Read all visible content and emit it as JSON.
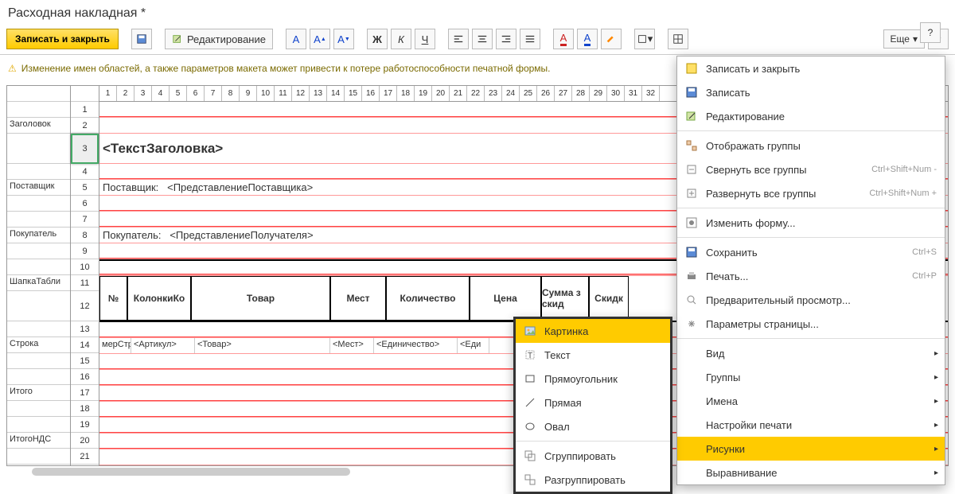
{
  "title": "Расходная накладная *",
  "toolbar": {
    "save_close": "Записать и закрыть",
    "edit": "Редактирование",
    "more": "Еще"
  },
  "warning": "Изменение имен областей, а также параметров макета может привести к потере работоспособности печатной формы.",
  "sections": [
    "",
    "Заголовок",
    "",
    "",
    "Поставщик",
    "",
    "",
    "Покупатель",
    "",
    "",
    "ШапкаТабли",
    "",
    "",
    "Строка",
    "",
    "",
    "Итого",
    "",
    "",
    "ИтогоНДС",
    ""
  ],
  "row_numbers": [
    "1",
    "2",
    "3",
    "4",
    "5",
    "6",
    "7",
    "8",
    "9",
    "10",
    "11",
    "12",
    "13",
    "14",
    "15",
    "16",
    "17",
    "18",
    "19",
    "20",
    "21"
  ],
  "cols": [
    "1",
    "2",
    "3",
    "4",
    "5",
    "6",
    "7",
    "8",
    "9",
    "10",
    "11",
    "12",
    "13",
    "14",
    "15",
    "16",
    "17",
    "18",
    "19",
    "20",
    "21",
    "22",
    "23",
    "24",
    "25",
    "26",
    "27",
    "28",
    "29",
    "30",
    "31",
    "32"
  ],
  "content": {
    "title_tpl": "<ТекстЗаголовка>",
    "supplier_label": "Поставщик:",
    "supplier_tpl": "<ПредставлениеПоставщика>",
    "buyer_label": "Покупатель:",
    "buyer_tpl": "<ПредставлениеПолучателя>",
    "headers": {
      "num": "№",
      "cols_k": "КолонкиКо",
      "goods": "Товар",
      "places": "Мест",
      "qty": "Количество",
      "price": "Цена",
      "sum": "Сумма з скид",
      "discount": "Скидк"
    },
    "row_tpl": {
      "num": "мерСтр",
      "art": "<Артикул>",
      "goods": "<Товар>",
      "places": "<Мест>",
      "qty": "<Единичество>",
      "unit": "<Еди"
    }
  },
  "menu_more": [
    {
      "label": "Записать и закрыть",
      "icon": "check"
    },
    {
      "label": "Записать",
      "icon": "save"
    },
    {
      "label": "Редактирование",
      "icon": "edit"
    },
    {
      "sep": true
    },
    {
      "label": "Отображать группы",
      "icon": "group"
    },
    {
      "label": "Свернуть все группы",
      "icon": "collapse",
      "sc": "Ctrl+Shift+Num -"
    },
    {
      "label": "Развернуть все группы",
      "icon": "expand",
      "sc": "Ctrl+Shift+Num +"
    },
    {
      "sep": true
    },
    {
      "label": "Изменить форму...",
      "icon": "form"
    },
    {
      "sep": true
    },
    {
      "label": "Сохранить",
      "icon": "save2",
      "sc": "Ctrl+S"
    },
    {
      "label": "Печать...",
      "icon": "print",
      "sc": "Ctrl+P"
    },
    {
      "label": "Предварительный просмотр...",
      "icon": "preview"
    },
    {
      "label": "Параметры страницы...",
      "icon": "page"
    },
    {
      "sep": true
    },
    {
      "label": "Вид",
      "sub": true
    },
    {
      "label": "Группы",
      "sub": true
    },
    {
      "label": "Имена",
      "sub": true
    },
    {
      "label": "Настройки печати",
      "sub": true
    },
    {
      "label": "Рисунки",
      "sub": true,
      "selected": true
    },
    {
      "label": "Выравнивание",
      "sub": true
    }
  ],
  "menu_drawings": [
    {
      "label": "Картинка",
      "icon": "image",
      "selected": true
    },
    {
      "label": "Текст",
      "icon": "text"
    },
    {
      "label": "Прямоугольник",
      "icon": "rect"
    },
    {
      "label": "Прямая",
      "icon": "line"
    },
    {
      "label": "Овал",
      "icon": "oval"
    },
    {
      "sep": true
    },
    {
      "label": "Сгруппировать",
      "icon": "group2"
    },
    {
      "label": "Разгруппировать",
      "icon": "ungroup"
    }
  ],
  "colors": {
    "accent": "#ffcb00",
    "redline": "#f44",
    "warning_text": "#7a6a00"
  }
}
